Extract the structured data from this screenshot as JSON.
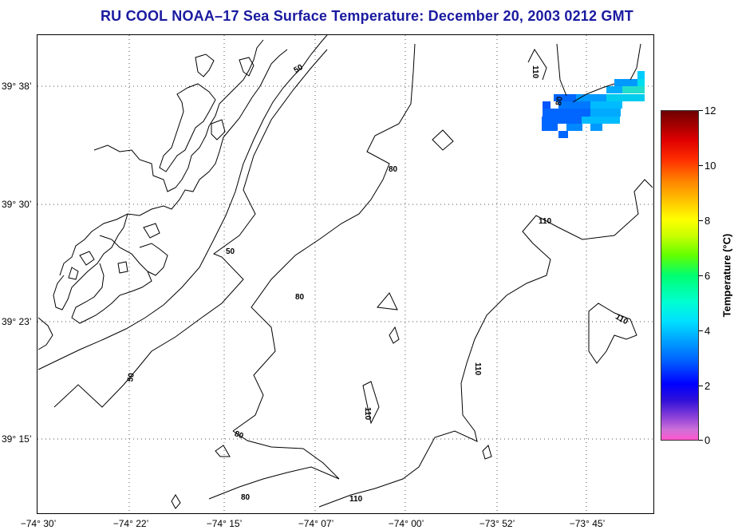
{
  "title": "RU COOL  NOAA–17  Sea Surface Temperature:  December 20, 2003 0212 GMT",
  "lat_labels": [
    "39° 38’",
    "39° 30’",
    "39° 23’",
    "39° 15’"
  ],
  "lon_labels": [
    "−74° 30’",
    "−74° 22’",
    "−74° 15’",
    "−74° 07’",
    "−74° 00’",
    "−73° 52’",
    "−73° 45’"
  ],
  "contour_labels": {
    "c50": "50",
    "c80": "80",
    "c110": "110"
  },
  "colorbar": {
    "title": "Temperature (°C)",
    "ticks": [
      "12",
      "10",
      "8",
      "6",
      "4",
      "2",
      "0"
    ],
    "range": [
      0,
      12
    ]
  },
  "colors": {
    "title": "#1a1aa0",
    "land_outline": "#000000",
    "sst_cold": "#0066ff",
    "sst_warm": "#00ddee"
  }
}
